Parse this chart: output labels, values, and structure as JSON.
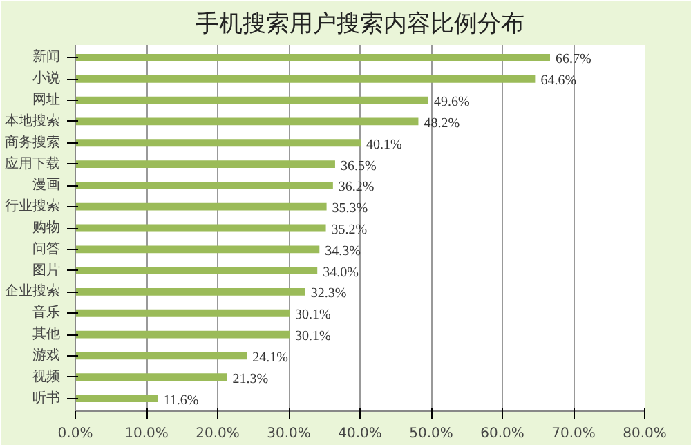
{
  "chart_data": {
    "type": "bar",
    "orientation": "horizontal",
    "title": "手机搜索用户搜索内容比例分布",
    "categories": [
      "新闻",
      "小说",
      "网址",
      "本地搜索",
      "商务搜索",
      "应用下载",
      "漫画",
      "行业搜索",
      "购物",
      "问答",
      "图片",
      "企业搜索",
      "音乐",
      "其他",
      "游戏",
      "视频",
      "听书"
    ],
    "values": [
      66.7,
      64.6,
      49.6,
      48.2,
      40.1,
      36.5,
      36.2,
      35.3,
      35.2,
      34.3,
      34.0,
      32.3,
      30.1,
      30.1,
      24.1,
      21.3,
      11.6
    ],
    "value_labels": [
      "66.7%",
      "64.6%",
      "49.6%",
      "48.2%",
      "40.1%",
      "36.5%",
      "36.2%",
      "35.3%",
      "35.2%",
      "34.3%",
      "34.0%",
      "32.3%",
      "30.1%",
      "30.1%",
      "24.1%",
      "21.3%",
      "11.6%"
    ],
    "color": "#9bbb59",
    "xlim": [
      0,
      80
    ],
    "xticks": [
      {
        "value": 0,
        "label": "0.0%"
      },
      {
        "value": 10,
        "label": "10.0%"
      },
      {
        "value": 20,
        "label": "20.0%"
      },
      {
        "value": 30,
        "label": "30.0%"
      },
      {
        "value": 40,
        "label": "40.0%"
      },
      {
        "value": 50,
        "label": "50.0%"
      },
      {
        "value": 60,
        "label": "60.0%"
      },
      {
        "value": 70,
        "label": "70.0%"
      },
      {
        "value": 80,
        "label": "80.0%"
      }
    ],
    "grid": "x"
  }
}
